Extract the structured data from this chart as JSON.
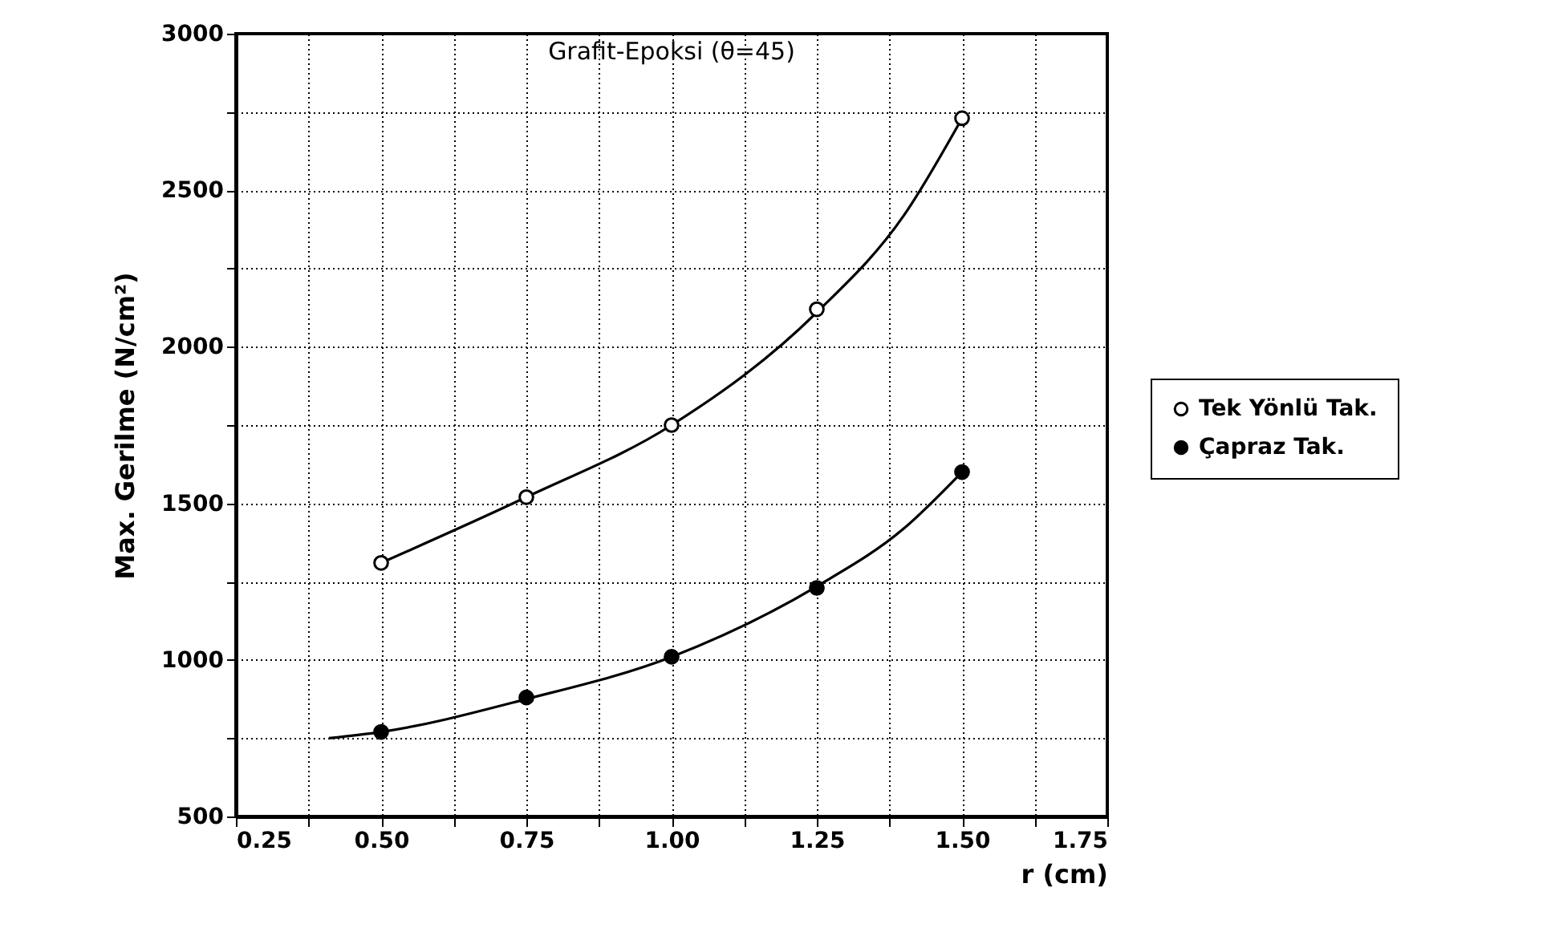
{
  "chart_data": {
    "type": "scatter",
    "title": "Grafit-Epoksi (θ=45)",
    "xlabel": "r  (cm)",
    "ylabel": "Max. Gerilme (N/cm²)",
    "xlim": [
      0.25,
      1.75
    ],
    "ylim": [
      500,
      3000
    ],
    "xticks": [
      0.25,
      {
        "value": 0.375,
        "label": null
      },
      {
        "value": 0.5,
        "label": "0.50"
      },
      {
        "value": 0.625,
        "label": null
      },
      0.75,
      {
        "value": 0.875,
        "label": null
      },
      {
        "value": 1.0,
        "label": "1.00"
      },
      {
        "value": 1.125,
        "label": null
      },
      1.25,
      {
        "value": 1.375,
        "label": null
      },
      {
        "value": 1.5,
        "label": "1.50"
      },
      {
        "value": 1.625,
        "label": null
      },
      1.75
    ],
    "yticks": [
      500,
      {
        "value": 750,
        "label": null
      },
      1000,
      {
        "value": 1250,
        "label": null
      },
      1500,
      {
        "value": 1750,
        "label": null
      },
      2000,
      {
        "value": 2250,
        "label": null
      },
      2500,
      {
        "value": 2750,
        "label": null
      },
      3000
    ],
    "grid": true,
    "legend": "right",
    "series": [
      {
        "name": "Tek Yönlü Tak.",
        "marker": "circle",
        "color": "#ffffff",
        "x": [
          0.5,
          0.75,
          1.0,
          1.25,
          1.5
        ],
        "values": [
          1310,
          1520,
          1750,
          2120,
          2730
        ]
      },
      {
        "name": "Çapraz Tak.",
        "marker": "circle",
        "color": "#000000",
        "x": [
          0.5,
          0.75,
          1.0,
          1.25,
          1.5
        ],
        "values": [
          770,
          880,
          1010,
          1230,
          1600
        ]
      },
      {
        "type": "line",
        "color": "#000000",
        "x": [
          0.5,
          0.75,
          1.0,
          1.25,
          1.4,
          1.5
        ],
        "values": [
          1310,
          1520,
          1750,
          2110,
          2420,
          2730
        ]
      },
      {
        "type": "line",
        "color": "#000000",
        "x": [
          0.41,
          0.5,
          0.75,
          1.0,
          1.25,
          1.4,
          1.5
        ],
        "values": [
          750,
          770,
          875,
          1010,
          1235,
          1420,
          1600
        ]
      }
    ]
  }
}
